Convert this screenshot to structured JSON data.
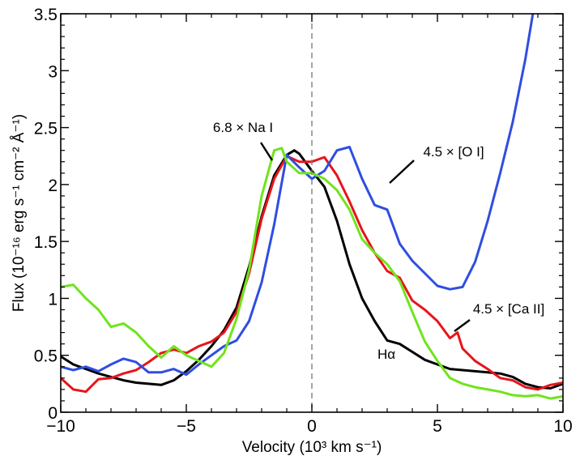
{
  "chart_data": {
    "type": "line",
    "title": "",
    "xlabel": "Velocity (10³ km s⁻¹)",
    "ylabel": "Flux (10⁻¹⁶ erg s⁻¹ cm⁻² Å⁻¹)",
    "xlim": [
      -10,
      10
    ],
    "ylim": [
      0,
      3.5
    ],
    "x_ticks": [
      -10,
      -5,
      0,
      5,
      10
    ],
    "x_tick_labels": [
      "−10",
      "−5",
      "0",
      "5",
      "10"
    ],
    "y_ticks": [
      0,
      0.5,
      1,
      1.5,
      2,
      2.5,
      3,
      3.5
    ],
    "y_tick_labels": [
      "0",
      "0.5",
      "1",
      "1.5",
      "2",
      "2.5",
      "3",
      "3.5"
    ],
    "grid": false,
    "reference_line": {
      "x": 0,
      "style": "dashed",
      "color": "#7f7f7f"
    },
    "series": [
      {
        "name": "Hα",
        "color": "#000000",
        "x": [
          -10,
          -9.5,
          -9,
          -8.5,
          -8,
          -7.5,
          -7,
          -6.5,
          -6,
          -5.5,
          -5,
          -4.5,
          -4,
          -3.5,
          -3,
          -2.5,
          -2,
          -1.5,
          -1,
          -0.7,
          -0.5,
          0,
          0.5,
          1,
          1.5,
          2,
          2.5,
          3,
          3.5,
          4,
          4.5,
          5,
          5.5,
          6,
          6.5,
          7,
          7.5,
          8,
          8.5,
          9,
          9.5,
          10
        ],
        "values": [
          0.49,
          0.42,
          0.38,
          0.34,
          0.31,
          0.28,
          0.26,
          0.25,
          0.24,
          0.28,
          0.36,
          0.46,
          0.58,
          0.72,
          0.92,
          1.28,
          1.72,
          2.08,
          2.26,
          2.3,
          2.27,
          2.12,
          1.98,
          1.68,
          1.3,
          1.0,
          0.8,
          0.63,
          0.6,
          0.53,
          0.46,
          0.42,
          0.38,
          0.37,
          0.36,
          0.35,
          0.34,
          0.31,
          0.25,
          0.22,
          0.21,
          0.25
        ]
      },
      {
        "name": "4.5 × [Ca II]",
        "color": "#e8141c",
        "x": [
          -10,
          -9.5,
          -9,
          -8.5,
          -8,
          -7.5,
          -7,
          -6.5,
          -6,
          -5.5,
          -5,
          -4.5,
          -4,
          -3.5,
          -3,
          -2.5,
          -2,
          -1.5,
          -1,
          -0.5,
          0,
          0.5,
          1,
          1.5,
          2,
          2.5,
          3,
          3.5,
          4,
          4.5,
          5,
          5.5,
          5.8,
          6,
          6.5,
          7,
          7.5,
          8,
          8.5,
          9,
          9.5,
          10
        ],
        "values": [
          0.3,
          0.2,
          0.18,
          0.29,
          0.3,
          0.34,
          0.37,
          0.44,
          0.52,
          0.55,
          0.52,
          0.58,
          0.62,
          0.7,
          0.88,
          1.22,
          1.7,
          2.05,
          2.25,
          2.2,
          2.2,
          2.24,
          2.08,
          1.85,
          1.6,
          1.4,
          1.24,
          1.18,
          0.98,
          0.9,
          0.8,
          0.65,
          0.7,
          0.56,
          0.45,
          0.38,
          0.3,
          0.28,
          0.22,
          0.2,
          0.24,
          0.26
        ]
      },
      {
        "name": "4.5 × [O I]",
        "color": "#2f4ee0",
        "x": [
          -10,
          -9.5,
          -9,
          -8.5,
          -8,
          -7.5,
          -7,
          -6.5,
          -6,
          -5.5,
          -5,
          -4.5,
          -4,
          -3.5,
          -3,
          -2.5,
          -2,
          -1.5,
          -1,
          -0.5,
          0,
          0.5,
          1,
          1.5,
          2,
          2.5,
          3,
          3.5,
          4,
          4.5,
          5,
          5.5,
          6,
          6.5,
          7,
          7.5,
          8,
          8.5,
          8.8
        ],
        "values": [
          0.4,
          0.37,
          0.4,
          0.36,
          0.42,
          0.47,
          0.44,
          0.35,
          0.35,
          0.38,
          0.33,
          0.42,
          0.5,
          0.58,
          0.63,
          0.8,
          1.14,
          1.65,
          2.26,
          2.15,
          2.05,
          2.12,
          2.3,
          2.33,
          2.05,
          1.82,
          1.78,
          1.48,
          1.33,
          1.22,
          1.11,
          1.08,
          1.1,
          1.32,
          1.68,
          2.1,
          2.55,
          3.1,
          3.5
        ]
      },
      {
        "name": "6.8 × Na I",
        "color": "#70e41c",
        "x": [
          -10,
          -9.5,
          -9,
          -8.5,
          -8,
          -7.5,
          -7,
          -6.5,
          -6,
          -5.5,
          -5,
          -4.5,
          -4,
          -3.5,
          -3,
          -2.5,
          -2,
          -1.5,
          -1.2,
          -1,
          -0.5,
          0,
          0.5,
          1,
          1.5,
          2,
          2.5,
          3,
          3.5,
          4,
          4.5,
          5,
          5.5,
          6,
          6.5,
          7,
          7.5,
          8,
          8.5,
          9,
          9.5,
          10
        ],
        "values": [
          1.1,
          1.12,
          1.0,
          0.9,
          0.75,
          0.78,
          0.7,
          0.58,
          0.48,
          0.58,
          0.5,
          0.45,
          0.4,
          0.52,
          0.82,
          1.25,
          1.9,
          2.3,
          2.32,
          2.2,
          2.1,
          2.1,
          2.05,
          1.95,
          1.78,
          1.52,
          1.4,
          1.3,
          1.15,
          0.88,
          0.62,
          0.45,
          0.3,
          0.25,
          0.22,
          0.2,
          0.18,
          0.15,
          0.14,
          0.15,
          0.12,
          0.14
        ]
      }
    ],
    "annotations": [
      {
        "text": "6.8 × Na I",
        "target_series": "6.8 × Na I"
      },
      {
        "text": "4.5 × [O I]",
        "target_series": "4.5 × [O I]"
      },
      {
        "text": "4.5 × [Ca II]",
        "target_series": "4.5 × [Ca II]"
      },
      {
        "text": "Hα",
        "target_series": "Hα"
      }
    ]
  }
}
